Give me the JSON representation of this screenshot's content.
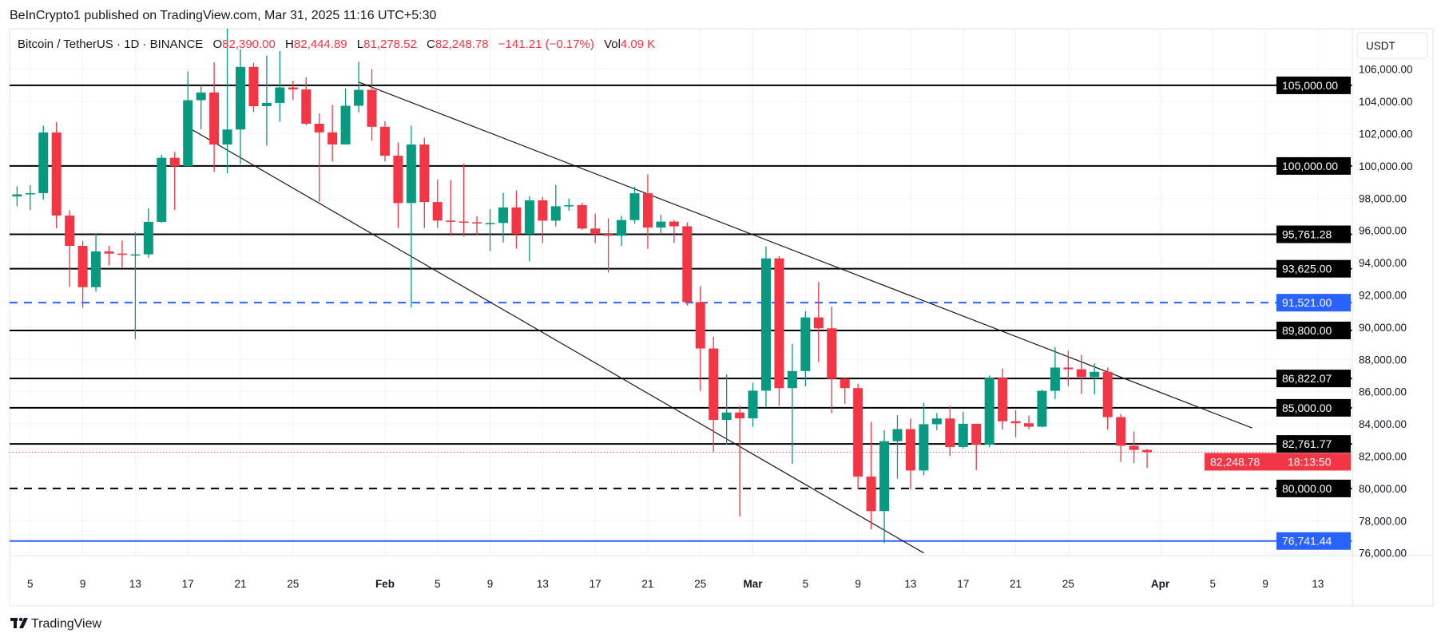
{
  "header": {
    "published": "BeInCrypto1 published on TradingView.com, Mar 31, 2025 11:16 UTC+5:30"
  },
  "legend": {
    "symbol": "Bitcoin / TetherUS · 1D · BINANCE",
    "open_label": "O",
    "open": "82,390.00",
    "high_label": "H",
    "high": "82,444.89",
    "low_label": "L",
    "low": "81,278.52",
    "close_label": "C",
    "close": "82,248.78",
    "change": "−141.21 (−0.17%)",
    "vol_label": "Vol",
    "vol": "4.09 K"
  },
  "price_axis": {
    "currency": "USDT"
  },
  "footer": {
    "brand": "TradingView"
  },
  "colors": {
    "up": "#089981",
    "down": "#F23645",
    "blue": "#2962FF",
    "level": "#000000",
    "grid": "#F0F3FA",
    "text": "#131722"
  },
  "chart_data": {
    "type": "candlestick",
    "title": "Bitcoin / TetherUS · 1D · BINANCE",
    "ylim": [
      75500,
      109000
    ],
    "y_ticks": [
      76000,
      78000,
      80000,
      82000,
      84000,
      86000,
      88000,
      90000,
      92000,
      94000,
      96000,
      98000,
      100000,
      102000,
      104000,
      106000
    ],
    "y_tick_labels": [
      "76,000.00",
      "78,000.00",
      "80,000.00",
      "82,000.00",
      "84,000.00",
      "86,000.00",
      "88,000.00",
      "90,000.00",
      "92,000.00",
      "94,000.00",
      "96,000.00",
      "98,000.00",
      "100,000.00",
      "102,000.00",
      "104,000.00",
      "106,000.00"
    ],
    "x_ticks": [
      {
        "label": "5",
        "date": "2025-01-05"
      },
      {
        "label": "9",
        "date": "2025-01-09"
      },
      {
        "label": "13",
        "date": "2025-01-13"
      },
      {
        "label": "17",
        "date": "2025-01-17"
      },
      {
        "label": "21",
        "date": "2025-01-21"
      },
      {
        "label": "25",
        "date": "2025-01-25"
      },
      {
        "label": "Feb",
        "date": "2025-02-01",
        "bold": true
      },
      {
        "label": "5",
        "date": "2025-02-05"
      },
      {
        "label": "9",
        "date": "2025-02-09"
      },
      {
        "label": "13",
        "date": "2025-02-13"
      },
      {
        "label": "17",
        "date": "2025-02-17"
      },
      {
        "label": "21",
        "date": "2025-02-21"
      },
      {
        "label": "25",
        "date": "2025-02-25"
      },
      {
        "label": "Mar",
        "date": "2025-03-01",
        "bold": true
      },
      {
        "label": "5",
        "date": "2025-03-05"
      },
      {
        "label": "9",
        "date": "2025-03-09"
      },
      {
        "label": "13",
        "date": "2025-03-13"
      },
      {
        "label": "17",
        "date": "2025-03-17"
      },
      {
        "label": "21",
        "date": "2025-03-21"
      },
      {
        "label": "25",
        "date": "2025-03-25"
      },
      {
        "label": "Apr",
        "date": "2025-04-01",
        "bold": true
      },
      {
        "label": "5",
        "date": "2025-04-05"
      },
      {
        "label": "9",
        "date": "2025-04-09"
      },
      {
        "label": "13",
        "date": "2025-04-13"
      }
    ],
    "fields": [
      "date",
      "open",
      "high",
      "low",
      "close"
    ],
    "candles": [
      [
        "2025-01-04",
        98107,
        98734,
        97500,
        98236
      ],
      [
        "2025-01-05",
        98236,
        98813,
        97268,
        98315
      ],
      [
        "2025-01-06",
        98315,
        102500,
        97900,
        102078
      ],
      [
        "2025-01-07",
        102078,
        102724,
        96132,
        96922
      ],
      [
        "2025-01-08",
        96922,
        97258,
        92500,
        95043
      ],
      [
        "2025-01-09",
        95043,
        95350,
        91203,
        92484
      ],
      [
        "2025-01-10",
        92484,
        95836,
        92206,
        94701
      ],
      [
        "2025-01-11",
        94701,
        95050,
        93831,
        94566
      ],
      [
        "2025-01-12",
        94566,
        95378,
        93712,
        94488
      ],
      [
        "2025-01-13",
        94488,
        95900,
        89256,
        94516
      ],
      [
        "2025-01-14",
        94516,
        97371,
        94304,
        96534
      ],
      [
        "2025-01-15",
        96534,
        100681,
        96465,
        100505
      ],
      [
        "2025-01-16",
        100505,
        100872,
        97268,
        99987
      ],
      [
        "2025-01-17",
        99987,
        105865,
        99950,
        104077
      ],
      [
        "2025-01-18",
        104077,
        104988,
        102277,
        104556
      ],
      [
        "2025-01-19",
        104556,
        106422,
        99651,
        101331
      ],
      [
        "2025-01-20",
        101331,
        109588,
        99550,
        102260
      ],
      [
        "2025-01-21",
        102260,
        107240,
        100119,
        106144
      ],
      [
        "2025-01-22",
        106144,
        106394,
        103339,
        103706
      ],
      [
        "2025-01-23",
        103706,
        106850,
        101262,
        103910
      ],
      [
        "2025-01-24",
        103910,
        107120,
        102750,
        104870
      ],
      [
        "2025-01-25",
        104870,
        105286,
        104106,
        104746
      ],
      [
        "2025-01-26",
        104746,
        105500,
        102520,
        102620
      ],
      [
        "2025-01-27",
        102620,
        103260,
        97777,
        102082
      ],
      [
        "2025-01-28",
        102082,
        103784,
        100272,
        101335
      ],
      [
        "2025-01-29",
        101335,
        104800,
        101328,
        103733
      ],
      [
        "2025-01-30",
        103733,
        106457,
        103320,
        104722
      ],
      [
        "2025-01-31",
        104722,
        106012,
        101560,
        102429
      ],
      [
        "2025-02-01",
        102429,
        102783,
        100279,
        100635
      ],
      [
        "2025-02-02",
        100635,
        101456,
        96150,
        97700
      ],
      [
        "2025-02-03",
        97700,
        102500,
        91231,
        101328
      ],
      [
        "2025-02-04",
        101328,
        101745,
        96150,
        97763
      ],
      [
        "2025-02-05",
        97763,
        99149,
        96155,
        96612
      ],
      [
        "2025-02-06",
        96612,
        99120,
        95676,
        96554
      ],
      [
        "2025-02-07",
        96554,
        100137,
        95620,
        96506
      ],
      [
        "2025-02-08",
        96506,
        96880,
        95688,
        96444
      ],
      [
        "2025-02-09",
        96444,
        97323,
        94713,
        96462
      ],
      [
        "2025-02-10",
        96462,
        98345,
        95256,
        97430
      ],
      [
        "2025-02-11",
        97430,
        98478,
        94876,
        95778
      ],
      [
        "2025-02-12",
        95778,
        98119,
        94088,
        97869
      ],
      [
        "2025-02-13",
        97869,
        98083,
        95217,
        96608
      ],
      [
        "2025-02-14",
        96608,
        98826,
        96252,
        97500
      ],
      [
        "2025-02-15",
        97500,
        97972,
        97223,
        97569
      ],
      [
        "2025-02-16",
        97569,
        97704,
        96046,
        96118
      ],
      [
        "2025-02-17",
        96118,
        97046,
        95205,
        95780
      ],
      [
        "2025-02-18",
        95780,
        96753,
        93388,
        95671
      ],
      [
        "2025-02-19",
        95671,
        96899,
        95029,
        96644
      ],
      [
        "2025-02-20",
        96644,
        98711,
        96415,
        98305
      ],
      [
        "2025-02-21",
        98305,
        99475,
        94871,
        96181
      ],
      [
        "2025-02-22",
        96181,
        96980,
        95770,
        96551
      ],
      [
        "2025-02-23",
        96551,
        96650,
        95227,
        96258
      ],
      [
        "2025-02-24",
        96258,
        96500,
        91349,
        91552
      ],
      [
        "2025-02-25",
        91552,
        92540,
        86050,
        88680
      ],
      [
        "2025-02-26",
        88680,
        89414,
        82256,
        84250
      ],
      [
        "2025-02-27",
        84250,
        87078,
        82716,
        84708
      ],
      [
        "2025-02-28",
        84708,
        85120,
        78258,
        84349
      ],
      [
        "2025-03-01",
        84349,
        86558,
        83824,
        86064
      ],
      [
        "2025-03-02",
        86064,
        95000,
        85050,
        94270
      ],
      [
        "2025-03-03",
        94270,
        94416,
        85117,
        86220
      ],
      [
        "2025-03-04",
        86221,
        88967,
        81529,
        87281
      ],
      [
        "2025-03-05",
        87281,
        91000,
        86334,
        90606
      ],
      [
        "2025-03-06",
        90606,
        92810,
        87836,
        89931
      ],
      [
        "2025-03-07",
        89931,
        91283,
        84667,
        86801
      ],
      [
        "2025-03-08",
        86801,
        86897,
        85248,
        86222
      ],
      [
        "2025-03-09",
        86222,
        86500,
        80000,
        80734
      ],
      [
        "2025-03-10",
        80735,
        84123,
        77459,
        78596
      ],
      [
        "2025-03-11",
        78595,
        83617,
        76606,
        82932
      ],
      [
        "2025-03-12",
        82932,
        84539,
        80607,
        83680
      ],
      [
        "2025-03-13",
        83680,
        84336,
        79939,
        81115
      ],
      [
        "2025-03-14",
        81115,
        85309,
        80818,
        83983
      ],
      [
        "2025-03-15",
        83983,
        84676,
        83618,
        84338
      ],
      [
        "2025-03-16",
        84338,
        85117,
        82017,
        82574
      ],
      [
        "2025-03-17",
        82574,
        84756,
        82457,
        84010
      ],
      [
        "2025-03-18",
        84010,
        84021,
        81134,
        82715
      ],
      [
        "2025-03-19",
        82715,
        87000,
        82547,
        86854
      ],
      [
        "2025-03-20",
        86855,
        87443,
        83647,
        84167
      ],
      [
        "2025-03-21",
        84167,
        84850,
        83175,
        84043
      ],
      [
        "2025-03-22",
        84044,
        84513,
        83674,
        83832
      ],
      [
        "2025-03-23",
        83832,
        86129,
        83795,
        86054
      ],
      [
        "2025-03-24",
        86054,
        88765,
        85542,
        87498
      ],
      [
        "2025-03-25",
        87498,
        88542,
        86346,
        87392
      ],
      [
        "2025-03-26",
        87392,
        88292,
        85862,
        86909
      ],
      [
        "2025-03-27",
        86909,
        87756,
        85838,
        87232
      ],
      [
        "2025-03-28",
        87232,
        87494,
        83645,
        84424
      ],
      [
        "2025-03-29",
        84424,
        84624,
        81644,
        82649
      ],
      [
        "2025-03-30",
        82649,
        83534,
        81565,
        82390
      ],
      [
        "2025-03-31",
        82390,
        82444.89,
        81278.52,
        82248.78
      ]
    ],
    "levels": [
      {
        "price": 105000,
        "label": "105,000.00",
        "style": "solid",
        "color": "#000000"
      },
      {
        "price": 100000,
        "label": "100,000.00",
        "style": "solid",
        "color": "#000000"
      },
      {
        "price": 95761.28,
        "label": "95,761.28",
        "style": "solid",
        "color": "#000000"
      },
      {
        "price": 93625,
        "label": "93,625.00",
        "style": "solid",
        "color": "#000000"
      },
      {
        "price": 91521,
        "label": "91,521.00",
        "style": "dashed",
        "color": "#2962FF"
      },
      {
        "price": 89800,
        "label": "89,800.00",
        "style": "solid",
        "color": "#000000"
      },
      {
        "price": 86822.07,
        "label": "86,822.07",
        "style": "solid",
        "color": "#000000"
      },
      {
        "price": 85000,
        "label": "85,000.00",
        "style": "solid",
        "color": "#000000"
      },
      {
        "price": 82761.77,
        "label": "82,761.77",
        "style": "solid",
        "color": "#000000"
      },
      {
        "price": 80000,
        "label": "80,000.00",
        "style": "dashed",
        "color": "#000000"
      },
      {
        "price": 76741.44,
        "label": "76,741.44",
        "style": "solid",
        "color": "#2962FF"
      }
    ],
    "current_price": {
      "price": 82248.78,
      "label": "82,248.78",
      "countdown": "18:13:50",
      "color": "#F23645"
    },
    "trendlines": [
      {
        "from": [
          "2025-01-30",
          105200
        ],
        "to": [
          "2025-04-08",
          83750
        ]
      },
      {
        "from": [
          "2025-01-17",
          102400
        ],
        "to": [
          "2025-03-14",
          76000
        ]
      }
    ]
  }
}
